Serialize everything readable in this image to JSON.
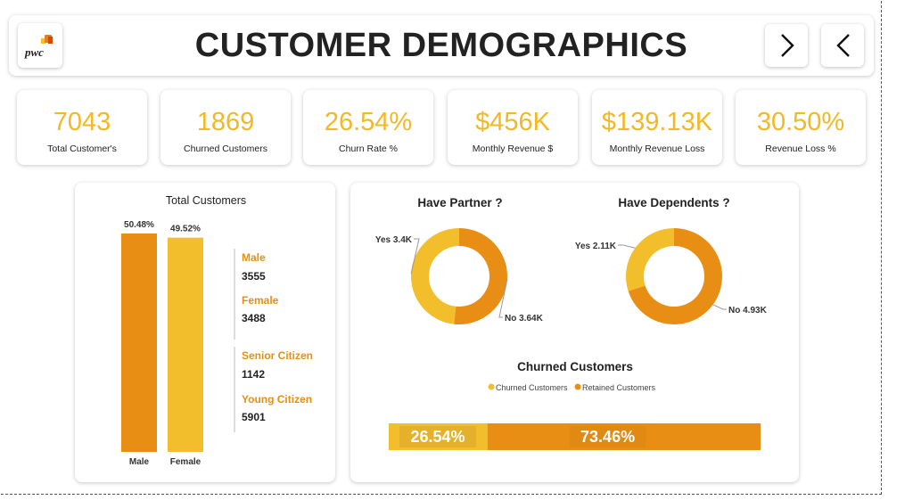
{
  "header": {
    "title": "CUSTOMER DEMOGRAPHICS",
    "logo_text": "pwc",
    "next_icon": "chevron-right-icon",
    "prev_icon": "chevron-left-icon"
  },
  "kpis": [
    {
      "value": "7043",
      "label": "Total Customer's"
    },
    {
      "value": "1869",
      "label": "Churned Customers"
    },
    {
      "value": "26.54%",
      "label": "Churn Rate %"
    },
    {
      "value": "$456K",
      "label": "Monthly Revenue $"
    },
    {
      "value": "$139.13K",
      "label": "Monthly Revenue Loss"
    },
    {
      "value": "30.50%",
      "label": "Revenue Loss %"
    }
  ],
  "colors": {
    "orange": "#e88e14",
    "yellow": "#f3be2b",
    "kpi_text": "#f2b825",
    "label_orange": "#e88e14"
  },
  "side_stats": {
    "male_label": "Male",
    "male_value": "3555",
    "female_label": "Female",
    "female_value": "3488",
    "senior_label": "Senior Citizen",
    "senior_value": "1142",
    "young_label": "Young Citizen",
    "young_value": "5901"
  },
  "chart_data": [
    {
      "type": "bar",
      "title": "Total Customers",
      "categories": [
        "Male",
        "Female"
      ],
      "values": [
        50.48,
        49.52
      ],
      "data_labels": [
        "50.48%",
        "49.52%"
      ],
      "ylim": [
        0,
        50.48
      ]
    },
    {
      "type": "pie",
      "title": "Have Partner ?",
      "labels": [
        "Yes",
        "No"
      ],
      "values": [
        3.4,
        3.64
      ],
      "data_labels": [
        "Yes 3.4K",
        "No 3.64K"
      ]
    },
    {
      "type": "pie",
      "title": "Have Dependents ?",
      "labels": [
        "Yes",
        "No"
      ],
      "values": [
        2.11,
        4.93
      ],
      "data_labels": [
        "Yes 2.11K",
        "No 4.93K"
      ]
    },
    {
      "type": "bar",
      "title": "Churned Customers",
      "series": [
        {
          "name": "Churned Customers",
          "values": [
            26.54
          ]
        },
        {
          "name": "Retained Customers",
          "values": [
            73.46
          ]
        }
      ],
      "data_labels": [
        "26.54%",
        "73.46%"
      ],
      "legend": "top-center"
    }
  ]
}
